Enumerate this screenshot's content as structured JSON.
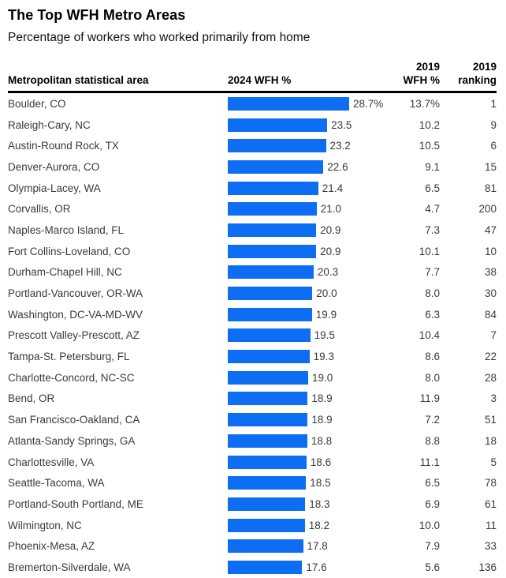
{
  "header": {
    "title": "The Top WFH Metro Areas",
    "subtitle": "Percentage of workers who worked primarily from home"
  },
  "columns": {
    "metro": "Metropolitan statistical area",
    "wfh_2024": "2024 WFH %",
    "wfh_2019_line1": "2019",
    "wfh_2019_line2": "WFH %",
    "rank_line1": "2019",
    "rank_line2": "ranking"
  },
  "colors": {
    "bar_blue": "#0d6ef4",
    "row_text": "#3a3a3a",
    "header_text": "#000000",
    "divider": "#000000"
  },
  "rows": [
    {
      "metro": "Boulder, CO",
      "value": 28.7,
      "value_label": "28.7%",
      "wfh_2019": "13.7%",
      "rank_2019": "1"
    },
    {
      "metro": "Raleigh-Cary, NC",
      "value": 23.5,
      "value_label": "23.5",
      "wfh_2019": "10.2",
      "rank_2019": "9"
    },
    {
      "metro": "Austin-Round Rock, TX",
      "value": 23.2,
      "value_label": "23.2",
      "wfh_2019": "10.5",
      "rank_2019": "6"
    },
    {
      "metro": "Denver-Aurora, CO",
      "value": 22.6,
      "value_label": "22.6",
      "wfh_2019": "9.1",
      "rank_2019": "15"
    },
    {
      "metro": "Olympia-Lacey, WA",
      "value": 21.4,
      "value_label": "21.4",
      "wfh_2019": "6.5",
      "rank_2019": "81"
    },
    {
      "metro": "Corvallis, OR",
      "value": 21.0,
      "value_label": "21.0",
      "wfh_2019": "4.7",
      "rank_2019": "200"
    },
    {
      "metro": "Naples-Marco Island, FL",
      "value": 20.9,
      "value_label": "20.9",
      "wfh_2019": "7.3",
      "rank_2019": "47"
    },
    {
      "metro": "Fort Collins-Loveland, CO",
      "value": 20.9,
      "value_label": "20.9",
      "wfh_2019": "10.1",
      "rank_2019": "10"
    },
    {
      "metro": "Durham-Chapel Hill, NC",
      "value": 20.3,
      "value_label": "20.3",
      "wfh_2019": "7.7",
      "rank_2019": "38"
    },
    {
      "metro": "Portland-Vancouver, OR-WA",
      "value": 20.0,
      "value_label": "20.0",
      "wfh_2019": "8.0",
      "rank_2019": "30"
    },
    {
      "metro": "Washington, DC-VA-MD-WV",
      "value": 19.9,
      "value_label": "19.9",
      "wfh_2019": "6.3",
      "rank_2019": "84"
    },
    {
      "metro": "Prescott Valley-Prescott, AZ",
      "value": 19.5,
      "value_label": "19.5",
      "wfh_2019": "10.4",
      "rank_2019": "7"
    },
    {
      "metro": "Tampa-St. Petersburg, FL",
      "value": 19.3,
      "value_label": "19.3",
      "wfh_2019": "8.6",
      "rank_2019": "22"
    },
    {
      "metro": "Charlotte-Concord, NC-SC",
      "value": 19.0,
      "value_label": "19.0",
      "wfh_2019": "8.0",
      "rank_2019": "28"
    },
    {
      "metro": "Bend, OR",
      "value": 18.9,
      "value_label": "18.9",
      "wfh_2019": "11.9",
      "rank_2019": "3"
    },
    {
      "metro": "San Francisco-Oakland, CA",
      "value": 18.9,
      "value_label": "18.9",
      "wfh_2019": "7.2",
      "rank_2019": "51"
    },
    {
      "metro": "Atlanta-Sandy Springs, GA",
      "value": 18.8,
      "value_label": "18.8",
      "wfh_2019": "8.8",
      "rank_2019": "18"
    },
    {
      "metro": "Charlottesville, VA",
      "value": 18.6,
      "value_label": "18.6",
      "wfh_2019": "11.1",
      "rank_2019": "5"
    },
    {
      "metro": "Seattle-Tacoma, WA",
      "value": 18.5,
      "value_label": "18.5",
      "wfh_2019": "6.5",
      "rank_2019": "78"
    },
    {
      "metro": "Portland-South Portland, ME",
      "value": 18.3,
      "value_label": "18.3",
      "wfh_2019": "6.9",
      "rank_2019": "61"
    },
    {
      "metro": "Wilmington, NC",
      "value": 18.2,
      "value_label": "18.2",
      "wfh_2019": "10.0",
      "rank_2019": "11"
    },
    {
      "metro": "Phoenix-Mesa, AZ",
      "value": 17.8,
      "value_label": "17.8",
      "wfh_2019": "7.9",
      "rank_2019": "33"
    },
    {
      "metro": "Bremerton-Silverdale, WA",
      "value": 17.6,
      "value_label": "17.6",
      "wfh_2019": "5.6",
      "rank_2019": "136"
    }
  ],
  "chart_data": {
    "type": "bar",
    "orientation": "horizontal",
    "title": "The Top WFH Metro Areas",
    "subtitle": "Percentage of workers who worked primarily from home",
    "categories": [
      "Boulder, CO",
      "Raleigh-Cary, NC",
      "Austin-Round Rock, TX",
      "Denver-Aurora, CO",
      "Olympia-Lacey, WA",
      "Corvallis, OR",
      "Naples-Marco Island, FL",
      "Fort Collins-Loveland, CO",
      "Durham-Chapel Hill, NC",
      "Portland-Vancouver, OR-WA",
      "Washington, DC-VA-MD-WV",
      "Prescott Valley-Prescott, AZ",
      "Tampa-St. Petersburg, FL",
      "Charlotte-Concord, NC-SC",
      "Bend, OR",
      "San Francisco-Oakland, CA",
      "Atlanta-Sandy Springs, GA",
      "Charlottesville, VA",
      "Seattle-Tacoma, WA",
      "Portland-South Portland, ME",
      "Wilmington, NC",
      "Phoenix-Mesa, AZ",
      "Bremerton-Silverdale, WA"
    ],
    "series": [
      {
        "name": "2024 WFH %",
        "values": [
          28.7,
          23.5,
          23.2,
          22.6,
          21.4,
          21.0,
          20.9,
          20.9,
          20.3,
          20.0,
          19.9,
          19.5,
          19.3,
          19.0,
          18.9,
          18.9,
          18.8,
          18.6,
          18.5,
          18.3,
          18.2,
          17.8,
          17.6
        ]
      },
      {
        "name": "2019 WFH %",
        "values": [
          13.7,
          10.2,
          10.5,
          9.1,
          6.5,
          4.7,
          7.3,
          10.1,
          7.7,
          8.0,
          6.3,
          10.4,
          8.6,
          8.0,
          11.9,
          7.2,
          8.8,
          11.1,
          6.5,
          6.9,
          10.0,
          7.9,
          5.6
        ]
      },
      {
        "name": "2019 ranking",
        "values": [
          1,
          9,
          6,
          15,
          81,
          200,
          47,
          10,
          38,
          30,
          84,
          7,
          22,
          28,
          3,
          51,
          18,
          5,
          78,
          61,
          11,
          33,
          136
        ]
      }
    ],
    "xlabel": "",
    "ylabel": "Metropolitan statistical area",
    "xlim": [
      0,
      28.7
    ],
    "grid": false,
    "legend_position": "none",
    "bar_color": "#0d6ef4",
    "value_labels_shown": true
  }
}
